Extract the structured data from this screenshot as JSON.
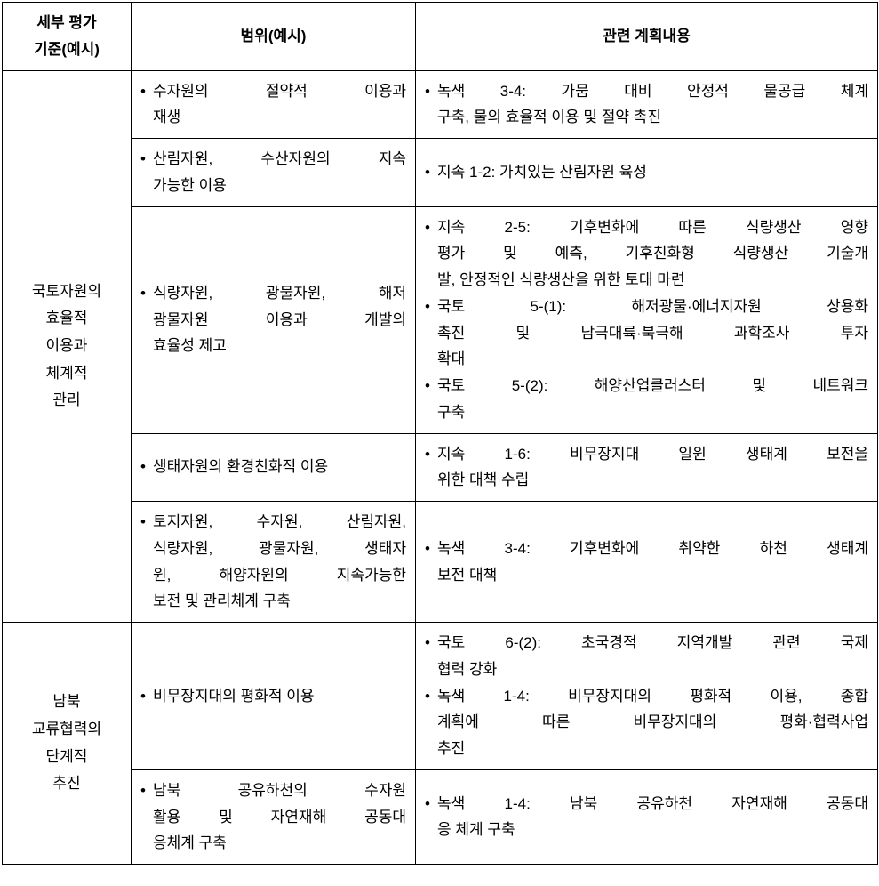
{
  "headers": {
    "col1_line1": "세부 평가",
    "col1_line2": "기준(예시)",
    "col2": "범위(예시)",
    "col3": "관련 계획내용"
  },
  "section1": {
    "category_l1": "국토자원의",
    "category_l2": "효율적",
    "category_l3": "이용과",
    "category_l4": "체계적",
    "category_l5": "관리",
    "row1": {
      "scope_l1": "수자원의 절약적 이용과",
      "scope_l2": "재생",
      "plan_l1": "녹색 3-4: 가뭄 대비 안정적 물공급 체계",
      "plan_l2": "구축, 물의 효율적 이용 및 절약 촉진"
    },
    "row2": {
      "scope_l1": "산림자원, 수산자원의 지속",
      "scope_l2": "가능한 이용",
      "plan": "지속 1-2: 가치있는 산림자원 육성"
    },
    "row3": {
      "scope_l1": "식량자원, 광물자원, 해저",
      "scope_l2": "광물자원 이용과 개발의",
      "scope_l3": "효율성 제고",
      "plan1_l1": "지속 2-5: 기후변화에 따른 식량생산 영향",
      "plan1_l2": "평가 및 예측, 기후친화형 식량생산 기술개",
      "plan1_l3": "발, 안정적인 식량생산을 위한 토대 마련",
      "plan2_l1": "국토 5-(1): 해저광물·에너지자원 상용화",
      "plan2_l2": "촉진 및 남극대륙·북극해 과학조사 투자",
      "plan2_l3": "확대",
      "plan3_l1": "국토 5-(2): 해양산업클러스터 및 네트워크",
      "plan3_l2": "구축"
    },
    "row4": {
      "scope": "생태자원의 환경친화적 이용",
      "plan_l1": "지속 1-6: 비무장지대 일원 생태계 보전을",
      "plan_l2": "위한 대책 수립"
    },
    "row5": {
      "scope_l1": "토지자원, 수자원, 산림자원,",
      "scope_l2": "식량자원, 광물자원, 생태자",
      "scope_l3": "원, 해양자원의 지속가능한",
      "scope_l4": "보전 및 관리체계 구축",
      "plan_l1": "녹색 3-4: 기후변화에 취약한 하천 생태계",
      "plan_l2": "보전 대책"
    }
  },
  "section2": {
    "category_l1": "남북",
    "category_l2": "교류협력의",
    "category_l3": "단계적",
    "category_l4": "추진",
    "row1": {
      "scope": "비무장지대의 평화적 이용",
      "plan1_l1": "국토 6-(2): 초국경적 지역개발 관련 국제",
      "plan1_l2": "협력 강화",
      "plan2_l1": "녹색 1-4: 비무장지대의 평화적 이용, 종합",
      "plan2_l2": "계획에 따른 비무장지대의 평화·협력사업",
      "plan2_l3": "추진"
    },
    "row2": {
      "scope_l1": "남북 공유하천의 수자원",
      "scope_l2": "활용 및 자연재해 공동대",
      "scope_l3": "응체계 구축",
      "plan_l1": "녹색 1-4: 남북 공유하천 자연재해 공동대",
      "plan_l2": "응 체계 구축"
    }
  }
}
